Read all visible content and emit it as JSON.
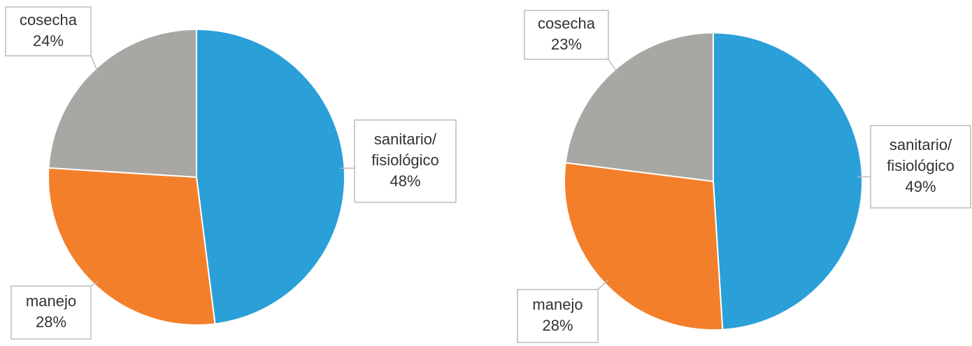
{
  "chart_data": [
    {
      "type": "pie",
      "categories": [
        "sanitario/ fisiológico",
        "manejo",
        "cosecha"
      ],
      "values": [
        48,
        28,
        24
      ],
      "value_labels": [
        "48%",
        "28%",
        "24%"
      ],
      "colors": [
        "#2a9fd8",
        "#f47f2a",
        "#a9a7a4"
      ]
    },
    {
      "type": "pie",
      "categories": [
        "sanitario/ fisiológico",
        "manejo",
        "cosecha"
      ],
      "values": [
        49,
        28,
        23
      ],
      "value_labels": [
        "49%",
        "28%",
        "23%"
      ],
      "colors": [
        "#2a9fd8",
        "#f47f2a",
        "#a9a7a4"
      ]
    }
  ]
}
